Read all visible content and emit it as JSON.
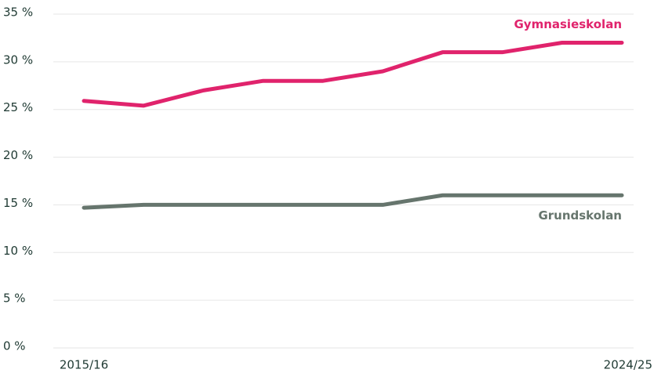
{
  "chart_data": {
    "type": "line",
    "categories": [
      "2015/16",
      null,
      null,
      null,
      null,
      null,
      null,
      null,
      null,
      "2024/25"
    ],
    "series": [
      {
        "name": "Gymnasieskolan",
        "color": "#e0236c",
        "values": [
          25.9,
          25.4,
          27,
          28,
          28,
          29,
          31,
          31,
          32,
          32
        ]
      },
      {
        "name": "Grundskolan",
        "color": "#66756d",
        "values": [
          14.7,
          15,
          15,
          15,
          15,
          15,
          16,
          16,
          16,
          16
        ]
      }
    ],
    "ylim": [
      0,
      35
    ],
    "yticks": [
      {
        "value": 0,
        "label": "0 %"
      },
      {
        "value": 5,
        "label": "5 %"
      },
      {
        "value": 10,
        "label": "10 %"
      },
      {
        "value": 15,
        "label": "15 %"
      },
      {
        "value": 20,
        "label": "20 %"
      },
      {
        "value": 25,
        "label": "25 %"
      },
      {
        "value": 30,
        "label": "30 %"
      },
      {
        "value": 35,
        "label": "35 %"
      }
    ],
    "grid": true
  }
}
